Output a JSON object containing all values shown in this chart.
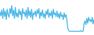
{
  "line_color": "#4db8e8",
  "background_color": "#ffffff",
  "linewidth": 0.9,
  "values": [
    62,
    52,
    68,
    45,
    72,
    50,
    65,
    42,
    70,
    55,
    48,
    72,
    58,
    80,
    52,
    68,
    45,
    75,
    50,
    60,
    48,
    70,
    55,
    65,
    42,
    72,
    58,
    62,
    50,
    68,
    45,
    75,
    52,
    65,
    48,
    70,
    42,
    60,
    55,
    65,
    50,
    68,
    58,
    72,
    45,
    62,
    52,
    68,
    48,
    58,
    45,
    65,
    55,
    70,
    48,
    60,
    52,
    65,
    45,
    70,
    55,
    60,
    50,
    65,
    48,
    58,
    45,
    62,
    50,
    55,
    42,
    60,
    48,
    55,
    42,
    18,
    12,
    10,
    10,
    10,
    10,
    10,
    10,
    10,
    10,
    10,
    10,
    10,
    10,
    12,
    10,
    10,
    10,
    30,
    38,
    28,
    45,
    32,
    48,
    38,
    42,
    35,
    48,
    30,
    42
  ]
}
